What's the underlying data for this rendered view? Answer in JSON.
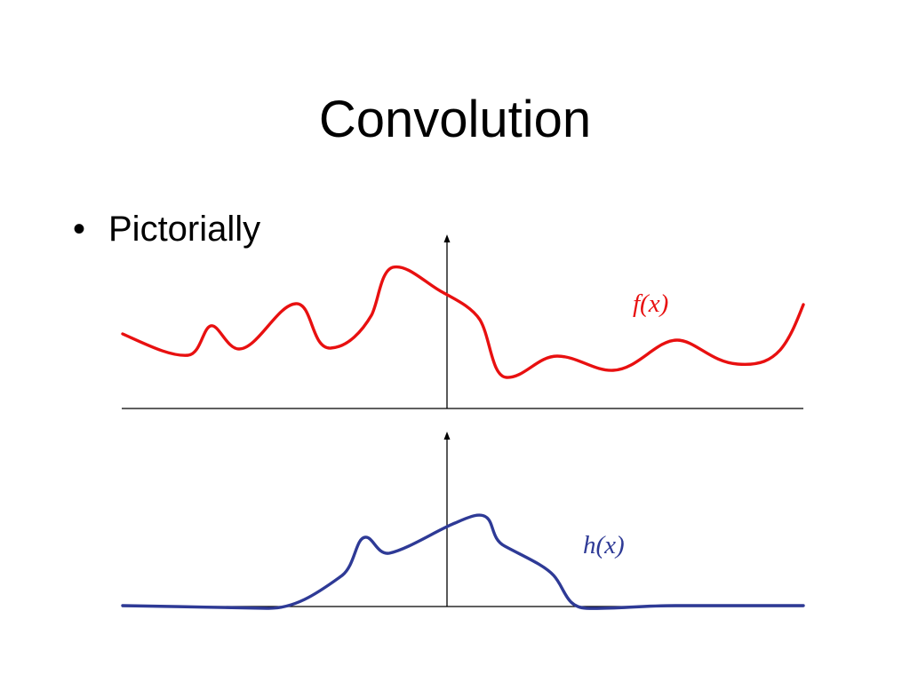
{
  "slide": {
    "title": "Convolution",
    "bullet_symbol": "•",
    "bullet_text": "Pictorially"
  },
  "diagram": {
    "top_panel": {
      "curve_label": "f(x)",
      "curve_color": "#e81010"
    },
    "bottom_panel": {
      "curve_label": "h(x)",
      "curve_color": "#2e3a96"
    },
    "axis_color": "#000000"
  }
}
